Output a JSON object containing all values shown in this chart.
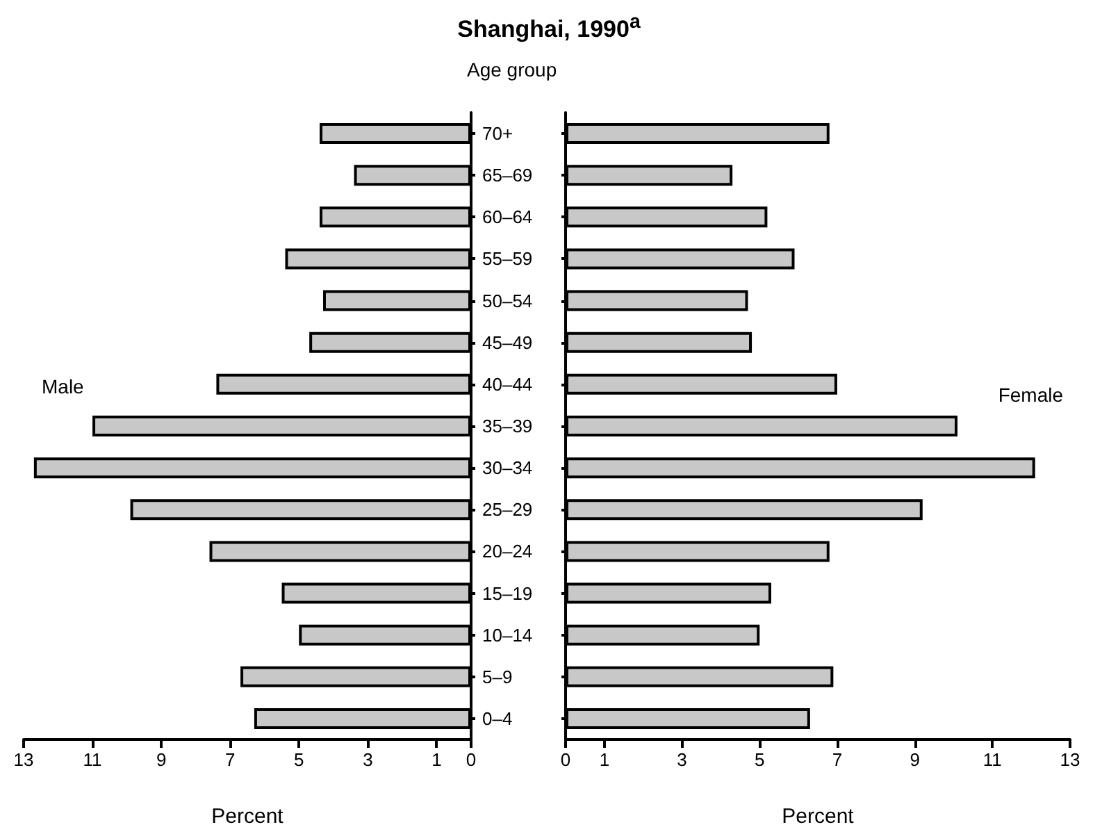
{
  "chart_data": [
    {
      "type": "bar",
      "orientation": "horizontal",
      "title": "Shanghai, 1990$^{a}$",
      "ylabel": "Age group",
      "xlabel": "Percent",
      "categories": [
        "70+",
        "65–69",
        "60–64",
        "55–59",
        "50–54",
        "45–49",
        "40–44",
        "35–39",
        "30–34",
        "25–29",
        "20–24",
        "15–19",
        "10–14",
        "5–9",
        "0–4"
      ],
      "series": [
        {
          "name": "Male",
          "color": "#c8c8c8",
          "values": [
            4.4,
            3.4,
            4.4,
            5.4,
            4.3,
            4.7,
            7.4,
            11.0,
            12.7,
            9.9,
            7.6,
            5.5,
            5.0,
            6.7,
            6.3
          ]
        }
      ],
      "xlim": [
        13,
        0
      ],
      "xticks": [
        13,
        11,
        9,
        7,
        5,
        3,
        1,
        0
      ]
    },
    {
      "type": "bar",
      "orientation": "horizontal",
      "xlabel": "Percent",
      "tick_labels": "x",
      "categories": [
        null,
        null,
        null,
        null,
        null,
        null,
        null,
        null,
        null,
        null,
        null,
        null,
        null,
        null,
        null
      ],
      "series": [
        {
          "name": "Female",
          "color": "#c8c8c8",
          "values": [
            6.8,
            4.3,
            5.2,
            5.9,
            4.7,
            4.8,
            7.0,
            10.1,
            12.1,
            9.2,
            6.8,
            5.3,
            5.0,
            6.9,
            6.3
          ]
        }
      ],
      "xlim": [
        0,
        13
      ],
      "xticks": [
        0,
        1,
        3,
        5,
        7,
        9,
        11,
        13
      ]
    }
  ]
}
